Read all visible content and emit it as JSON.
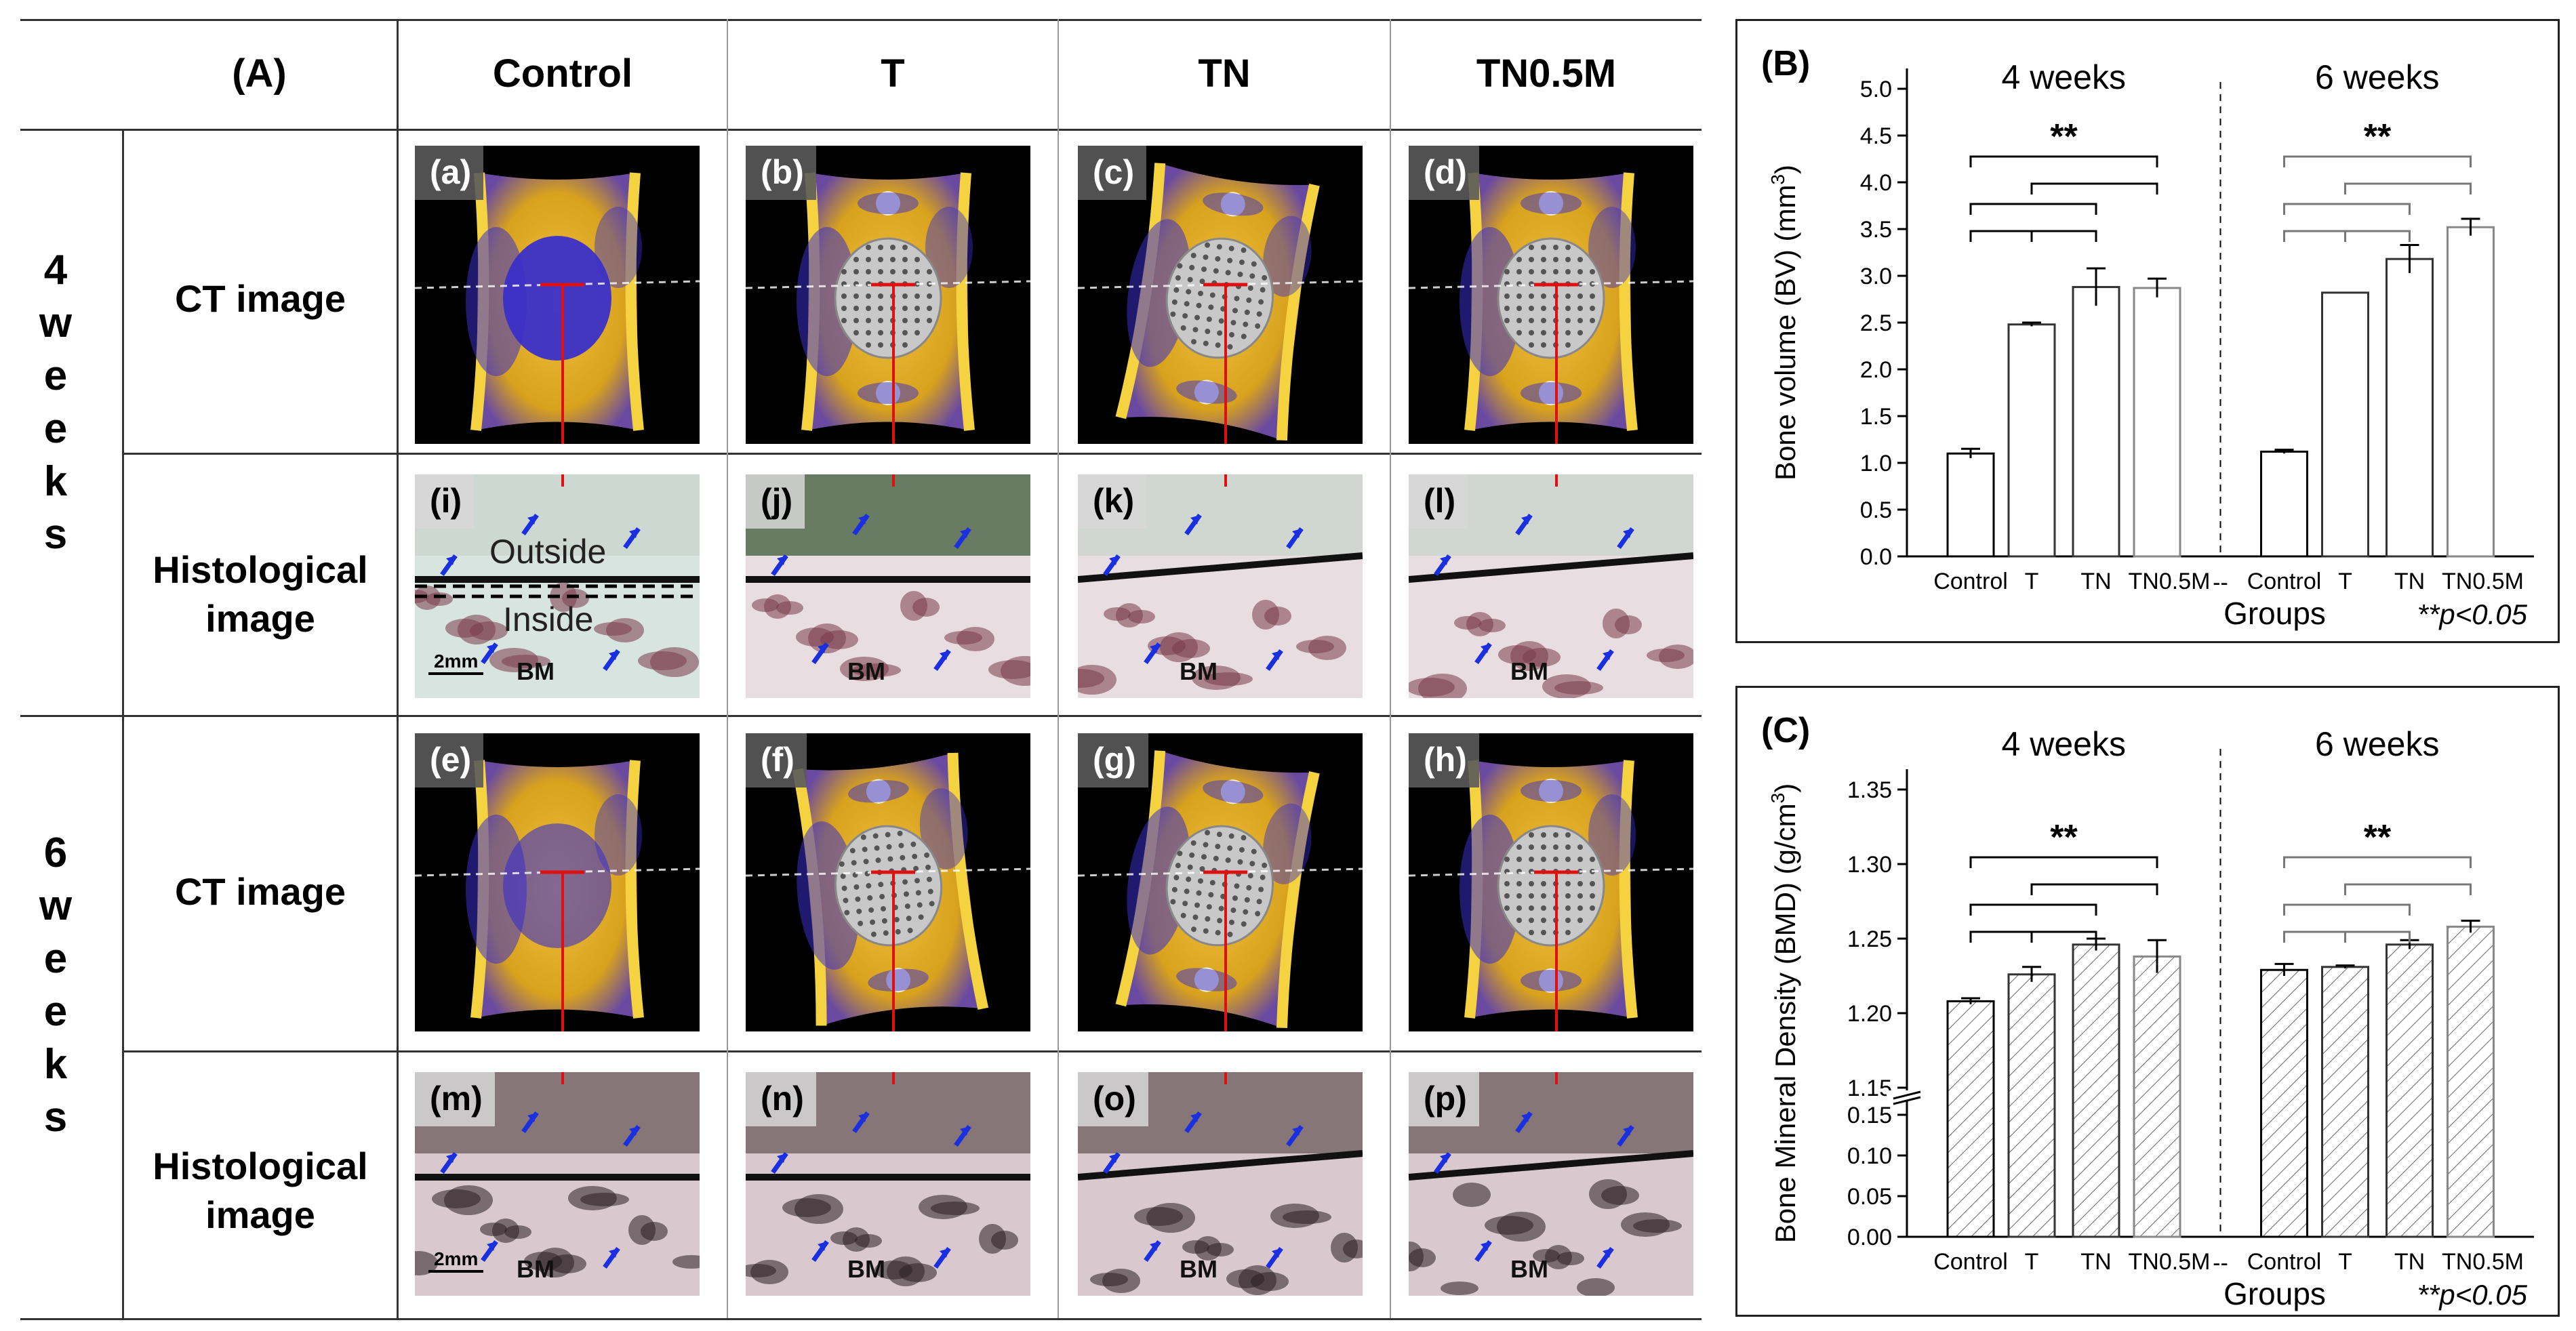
{
  "table": {
    "panel_label": "(A)",
    "columns": [
      "Control",
      "T",
      "TN",
      "TN0.5M"
    ],
    "periods": [
      {
        "letters": [
          "4",
          "w",
          "e",
          "e",
          "k",
          "s"
        ],
        "ct_label": "CT image",
        "histo_label": [
          "Histological",
          "image"
        ]
      },
      {
        "letters": [
          "6",
          "w",
          "e",
          "e",
          "k",
          "s"
        ],
        "ct_label": "CT image",
        "histo_label": [
          "Histological",
          "image"
        ]
      }
    ],
    "ct_panels": [
      "(a)",
      "(b)",
      "(c)",
      "(d)",
      "(e)",
      "(f)",
      "(g)",
      "(h)"
    ],
    "histo_panels": [
      "(i)",
      "(j)",
      "(k)",
      "(l)",
      "(m)",
      "(n)",
      "(o)",
      "(p)"
    ],
    "outside_label": "Outside",
    "inside_label": "Inside",
    "bm_label": "BM",
    "scale_label": "2mm"
  },
  "colors": {
    "ct_bone": "#d8a21d",
    "ct_blue": "#3a2fc8",
    "marker_red": "#e01010",
    "arrow_blue": "#1a2fe0"
  },
  "chart_data": [
    {
      "panel_label": "(B)",
      "type": "bar",
      "ylabel_pre": "Bone volume (BV) (mm",
      "ylabel_sup": "3",
      "ylabel_post": ")",
      "xlabel": "Groups",
      "note": "**p<0.05",
      "ylim": [
        0,
        5.0
      ],
      "yticks": [
        "0.0",
        "0.5",
        "1.0",
        "1.5",
        "2.0",
        "2.5",
        "3.0",
        "3.5",
        "4.0",
        "4.5",
        "5.0"
      ],
      "group_titles": [
        "4 weeks",
        "6 weeks"
      ],
      "categories": [
        "Control",
        "T",
        "TN",
        "TN0.5M"
      ],
      "separator_label": "--",
      "significance": "**",
      "hatched": false,
      "series": [
        {
          "values": [
            1.1,
            2.48,
            2.88,
            2.87
          ],
          "errors": [
            0.05,
            0.02,
            0.2,
            0.1
          ]
        },
        {
          "values": [
            1.12,
            2.82,
            3.18,
            3.52
          ],
          "errors": [
            0.02,
            0.0,
            0.15,
            0.09
          ]
        }
      ]
    },
    {
      "panel_label": "(C)",
      "type": "bar",
      "ylabel_pre": "Bone Mineral Density (BMD) (g/cm",
      "ylabel_sup": "3",
      "ylabel_post": ")",
      "xlabel": "Groups",
      "note": "**p<0.05",
      "axis_break": true,
      "ylim_lower": [
        0.0,
        0.15
      ],
      "ylim_upper": [
        1.15,
        1.35
      ],
      "yticks_lower": [
        "0.00",
        "0.05",
        "0.10",
        "0.15"
      ],
      "yticks_upper": [
        "1.15",
        "1.20",
        "1.25",
        "1.30",
        "1.35"
      ],
      "group_titles": [
        "4 weeks",
        "6 weeks"
      ],
      "categories": [
        "Control",
        "T",
        "TN",
        "TN0.5M"
      ],
      "separator_label": "--",
      "significance": "**",
      "hatched": true,
      "series": [
        {
          "values": [
            1.208,
            1.226,
            1.246,
            1.238
          ],
          "errors": [
            0.002,
            0.005,
            0.004,
            0.011
          ]
        },
        {
          "values": [
            1.229,
            1.231,
            1.246,
            1.258
          ],
          "errors": [
            0.004,
            0.001,
            0.003,
            0.004
          ]
        }
      ]
    }
  ]
}
